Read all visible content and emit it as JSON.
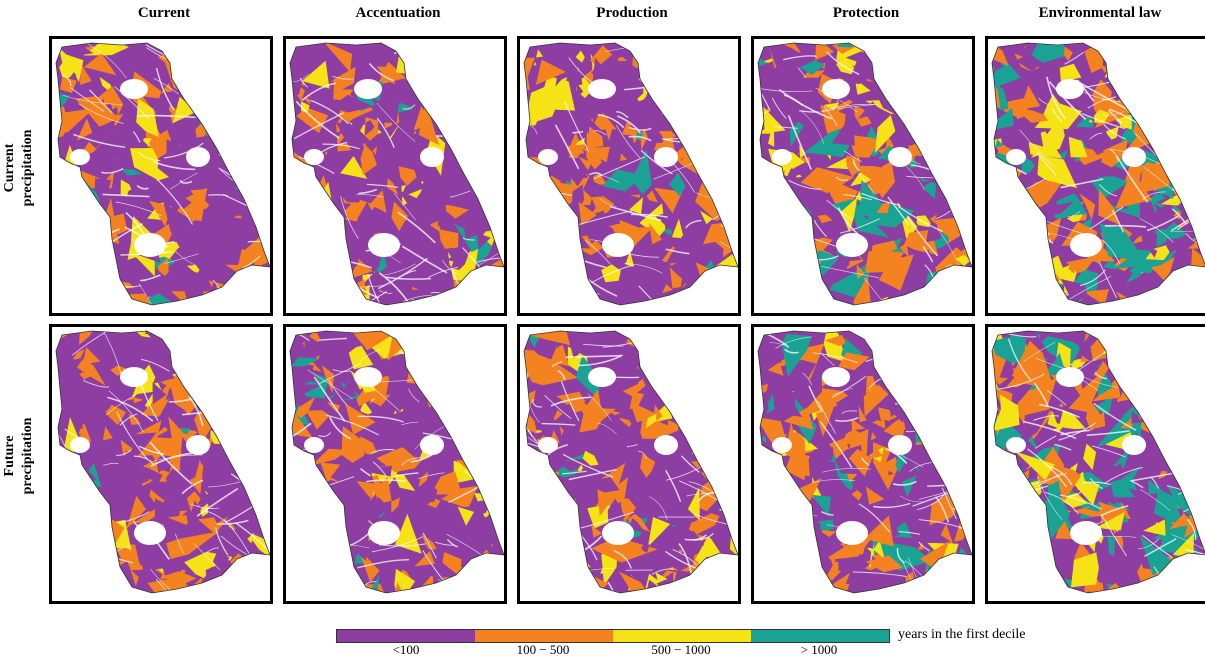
{
  "columns": [
    "Current",
    "Accentuation",
    "Production",
    "Protection",
    "Environmental law"
  ],
  "rows": [
    "Current\nprecipitation",
    "Future\nprecipitation"
  ],
  "row_lines": [
    [
      "Current",
      "precipitation"
    ],
    [
      "Future",
      "precipitation"
    ]
  ],
  "legend": {
    "title": "years in the first decile",
    "classes": [
      {
        "label": "<100",
        "color": "#8e3ea3"
      },
      {
        "label": "100 − 500",
        "color": "#f58220"
      },
      {
        "label": "500 − 1000",
        "color": "#f5e316"
      },
      {
        "label": "> 1000",
        "color": "#1aa394"
      }
    ]
  },
  "panel_mix": {
    "Current": [
      0.58,
      0.28,
      0.1,
      0.04
    ],
    "Accentuation": [
      0.57,
      0.29,
      0.1,
      0.04
    ],
    "Production": [
      0.56,
      0.29,
      0.1,
      0.05
    ],
    "Protection": [
      0.5,
      0.27,
      0.12,
      0.11
    ],
    "Environmental law": [
      0.28,
      0.3,
      0.18,
      0.24
    ]
  }
}
